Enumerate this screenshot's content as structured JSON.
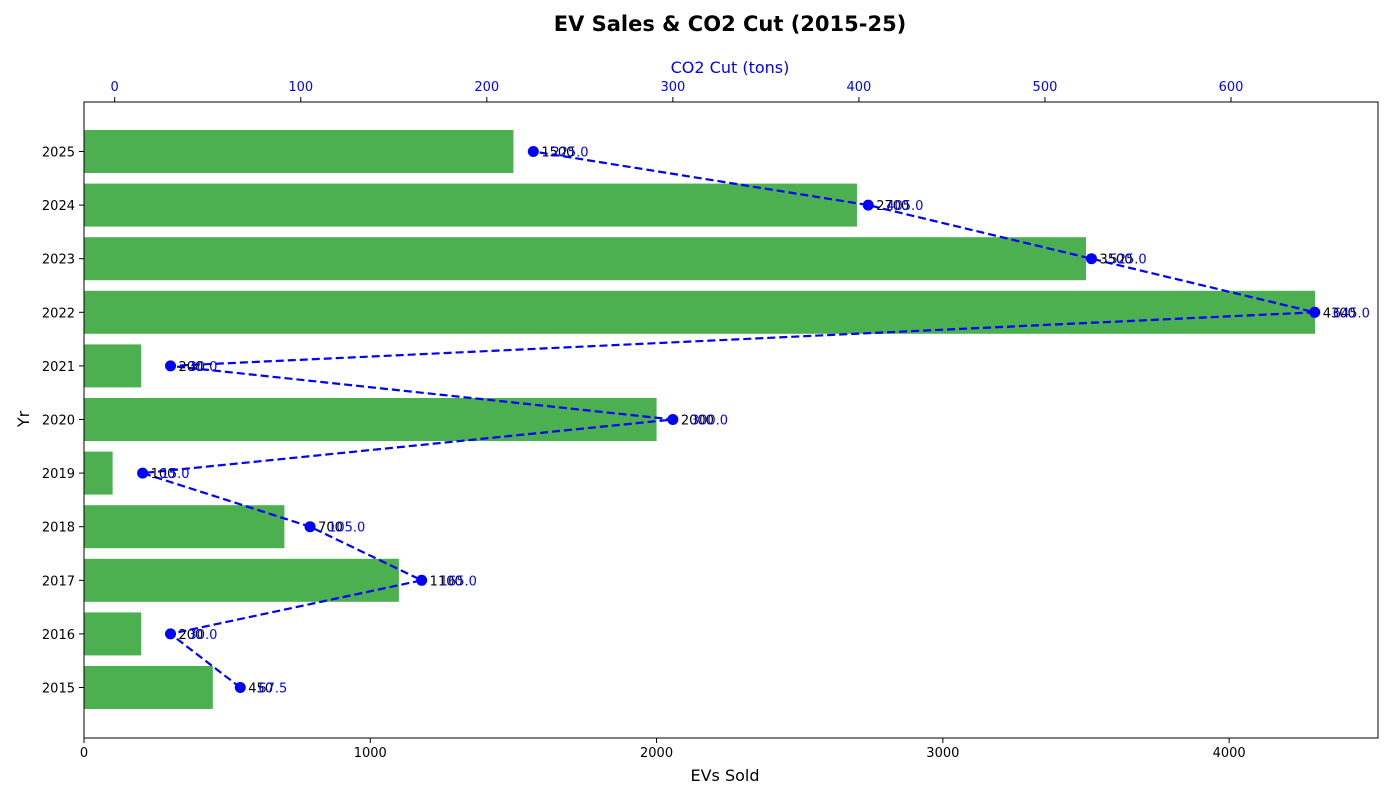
{
  "chart_data": {
    "type": "bar",
    "orientation": "horizontal",
    "title": "EV Sales & CO2 Cut (2015-25)",
    "ylabel": "Yr",
    "xlabel": "EVs Sold",
    "x2label": "CO2 Cut (tons)",
    "categories": [
      "2015",
      "2016",
      "2017",
      "2018",
      "2019",
      "2020",
      "2021",
      "2022",
      "2023",
      "2024",
      "2025"
    ],
    "xlim": [
      0,
      4520
    ],
    "x2lim": [
      -16.5,
      679
    ],
    "x_ticks": [
      0,
      1000,
      2000,
      3000,
      4000
    ],
    "x2_ticks": [
      0,
      100,
      200,
      300,
      400,
      500,
      600
    ],
    "series": [
      {
        "name": "EVs Sold",
        "kind": "bar",
        "axis": "bottom",
        "color": "#4caf50",
        "values": [
          450,
          200,
          1100,
          700,
          100,
          2000,
          200,
          4300,
          3500,
          2700,
          1500
        ],
        "labels": [
          "450",
          "200",
          "1100",
          "700",
          "100",
          "2000",
          "200",
          "4300",
          "3500",
          "2700",
          "1500"
        ]
      },
      {
        "name": "CO2 Cut (tons)",
        "kind": "line",
        "axis": "top",
        "color": "#0000ff",
        "line_style": "dashed",
        "marker": "circle",
        "values": [
          67.5,
          30.0,
          165.0,
          105.0,
          15.0,
          300.0,
          30.0,
          645.0,
          525.0,
          405.0,
          225.0
        ],
        "labels": [
          "67.5",
          "30.0",
          "165.0",
          "105.0",
          "15.0",
          "300.0",
          "30.0",
          "645.0",
          "525.0",
          "405.0",
          "225.0"
        ]
      }
    ]
  }
}
